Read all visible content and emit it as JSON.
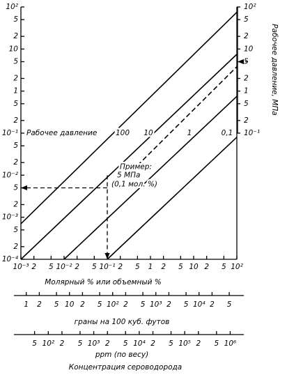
{
  "chart_data": {
    "type": "line",
    "xscale": "log",
    "yscale": "log",
    "xlim": [
      0.001,
      100
    ],
    "ylim": [
      0.0001,
      100
    ],
    "xticks": [
      {
        "value": 0.001,
        "label": "10⁻³"
      },
      {
        "value": 0.002,
        "label": "2"
      },
      {
        "value": 0.005,
        "label": "5"
      },
      {
        "value": 0.01,
        "label": "10⁻²"
      },
      {
        "value": 0.02,
        "label": "2"
      },
      {
        "value": 0.05,
        "label": "5"
      },
      {
        "value": 0.1,
        "label": "10⁻¹"
      },
      {
        "value": 0.2,
        "label": "2"
      },
      {
        "value": 0.5,
        "label": "5"
      },
      1,
      2,
      5,
      10,
      {
        "value": 20,
        "label": "2"
      },
      {
        "value": 50,
        "label": "5"
      },
      {
        "value": 100,
        "label": "10²"
      }
    ],
    "yticks": [
      {
        "value": 0.0001,
        "label": "10⁻⁴"
      },
      {
        "value": 0.0002,
        "label": "2"
      },
      {
        "value": 0.0005,
        "label": "5"
      },
      {
        "value": 0.001,
        "label": "10⁻³"
      },
      {
        "value": 0.002,
        "label": "2"
      },
      {
        "value": 0.005,
        "label": "5"
      },
      {
        "value": 0.01,
        "label": "10⁻²"
      },
      {
        "value": 0.02,
        "label": "2"
      },
      {
        "value": 0.05,
        "label": "5"
      },
      {
        "value": 0.1,
        "label": "10⁻¹"
      },
      {
        "value": 0.2,
        "label": "2"
      },
      {
        "value": 0.5,
        "label": "5"
      },
      1,
      2,
      5,
      10,
      {
        "value": 20,
        "label": "2"
      },
      {
        "value": 50,
        "label": "5"
      },
      {
        "value": 100,
        "label": "10²"
      }
    ],
    "xlabel": "Молярный % или объемный %",
    "y2lim": [
      0.1,
      100
    ],
    "y2ticks": [
      {
        "value": 0.1,
        "label": "10⁻¹"
      },
      {
        "value": 0.2,
        "label": "2"
      },
      {
        "value": 0.5,
        "label": "5"
      },
      1,
      2,
      5,
      10,
      {
        "value": 20,
        "label": "2"
      },
      {
        "value": 50,
        "label": "5"
      },
      {
        "value": 100,
        "label": "10²"
      }
    ],
    "y2label": "Рабочее давление, МПа",
    "grid": false,
    "series_label_title": "Рабочее давление",
    "series": [
      {
        "name": "100",
        "color": "#000000",
        "x": [
          0.001,
          100
        ],
        "values": [
          0.0007,
          75
        ]
      },
      {
        "name": "10",
        "color": "#000000",
        "x": [
          0.001,
          100
        ],
        "values": [
          0.0001,
          7.5
        ]
      },
      {
        "name": "1",
        "color": "#000000",
        "x": [
          0.01,
          100
        ],
        "values": [
          0.0001,
          0.75
        ]
      },
      {
        "name": "0,1",
        "color": "#000000",
        "x": [
          0.1,
          100
        ],
        "values": [
          0.0001,
          0.08
        ]
      },
      {
        "color": "#000000",
        "dashed": true,
        "x": [
          0.5,
          100
        ],
        "values": [
          0.017,
          3.8
        ]
      }
    ],
    "example": {
      "title": "Пример:",
      "pressure_label": "5 МПа",
      "concentration_label": "(0,1 мол. %)",
      "x": 0.1,
      "y": 0.005,
      "pressure": 5
    },
    "secondary_x_axes": [
      {
        "label": "граны на 100 куб. футов",
        "lim": [
          0.75,
          75000
        ],
        "ticks": [
          1,
          2,
          5,
          10,
          {
            "value": 20,
            "label": "2"
          },
          {
            "value": 50,
            "label": "5"
          },
          {
            "value": 100,
            "label": "10²"
          },
          {
            "value": 200,
            "label": "2"
          },
          {
            "value": 500,
            "label": "5"
          },
          {
            "value": 1000,
            "label": "10³"
          },
          {
            "value": 2000,
            "label": "2"
          },
          {
            "value": 5000,
            "label": "5"
          },
          {
            "value": 10000,
            "label": "10⁴"
          },
          {
            "value": 20000,
            "label": "2"
          },
          {
            "value": 50000,
            "label": "5"
          }
        ]
      },
      {
        "label": "ppm (по весу)",
        "lim": [
          25,
          1400000
        ],
        "ticks": [
          {
            "value": 50,
            "label": "5"
          },
          {
            "value": 100,
            "label": "10²"
          },
          {
            "value": 200,
            "label": "2"
          },
          {
            "value": 500,
            "label": "5"
          },
          {
            "value": 1000,
            "label": "10³"
          },
          {
            "value": 2000,
            "label": "2"
          },
          {
            "value": 5000,
            "label": "5"
          },
          {
            "value": 10000,
            "label": "10⁴"
          },
          {
            "value": 20000,
            "label": "2"
          },
          {
            "value": 50000,
            "label": "5"
          },
          {
            "value": 100000,
            "label": "10⁵"
          },
          {
            "value": 200000,
            "label": "2"
          },
          {
            "value": 500000,
            "label": "5"
          },
          {
            "value": 1000000,
            "label": "10⁶"
          }
        ]
      }
    ],
    "caption": "Концентрация сероводорода"
  }
}
